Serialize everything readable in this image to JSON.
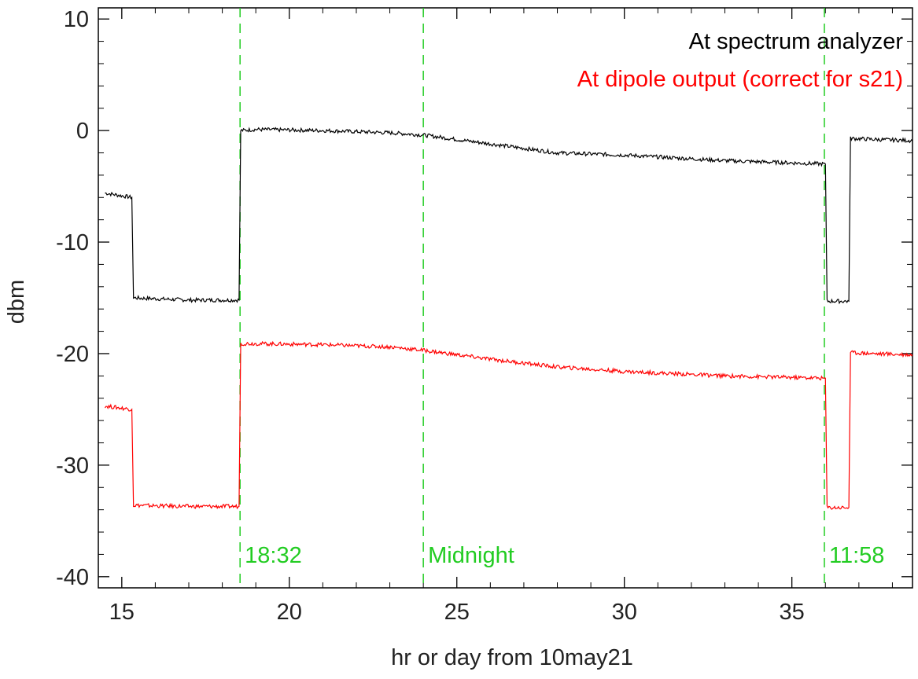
{
  "chart_data": {
    "type": "line",
    "title": "",
    "xlabel": "hr or day from 10may21",
    "ylabel": "dbm",
    "xlim": [
      14.3,
      38.6
    ],
    "ylim": [
      -41,
      11
    ],
    "xticks": [
      15,
      20,
      25,
      30,
      35
    ],
    "yticks": [
      10,
      0,
      -10,
      -20,
      -30,
      -40
    ],
    "legend_position": "top-right",
    "grid": false,
    "series": [
      {
        "name": "At spectrum analyzer",
        "color": "#000000",
        "points": [
          [
            14.5,
            -5.6
          ],
          [
            15.3,
            -6.0
          ],
          [
            15.35,
            -15.0
          ],
          [
            17.0,
            -15.2
          ],
          [
            18.5,
            -15.2
          ],
          [
            18.55,
            0.0
          ],
          [
            19.0,
            0.1
          ],
          [
            21.0,
            0.0
          ],
          [
            23.0,
            -0.2
          ],
          [
            24.0,
            -0.4
          ],
          [
            26.0,
            -1.2
          ],
          [
            28.0,
            -2.0
          ],
          [
            30.0,
            -2.2
          ],
          [
            33.0,
            -2.7
          ],
          [
            36.0,
            -3.0
          ],
          [
            36.05,
            -15.3
          ],
          [
            36.7,
            -15.3
          ],
          [
            36.75,
            -0.7
          ],
          [
            37.5,
            -0.8
          ],
          [
            38.6,
            -0.9
          ]
        ]
      },
      {
        "name": "At dipole output (correct for s21)",
        "color": "#ff0000",
        "points": [
          [
            14.5,
            -24.7
          ],
          [
            15.3,
            -25.0
          ],
          [
            15.35,
            -33.6
          ],
          [
            17.0,
            -33.7
          ],
          [
            18.5,
            -33.7
          ],
          [
            18.55,
            -19.1
          ],
          [
            19.0,
            -19.1
          ],
          [
            21.0,
            -19.2
          ],
          [
            23.0,
            -19.4
          ],
          [
            24.0,
            -19.7
          ],
          [
            26.0,
            -20.5
          ],
          [
            28.0,
            -21.2
          ],
          [
            30.0,
            -21.6
          ],
          [
            33.0,
            -22.0
          ],
          [
            36.0,
            -22.2
          ],
          [
            36.05,
            -33.8
          ],
          [
            36.7,
            -33.8
          ],
          [
            36.75,
            -19.9
          ],
          [
            37.5,
            -20.0
          ],
          [
            38.6,
            -20.1
          ]
        ]
      }
    ],
    "vertical_lines": [
      {
        "x": 18.53,
        "label": "18:32",
        "color": "#22cc22"
      },
      {
        "x": 24.0,
        "label": "Midnight",
        "color": "#22cc22"
      },
      {
        "x": 35.97,
        "label": "11:58",
        "color": "#22cc22"
      }
    ]
  }
}
